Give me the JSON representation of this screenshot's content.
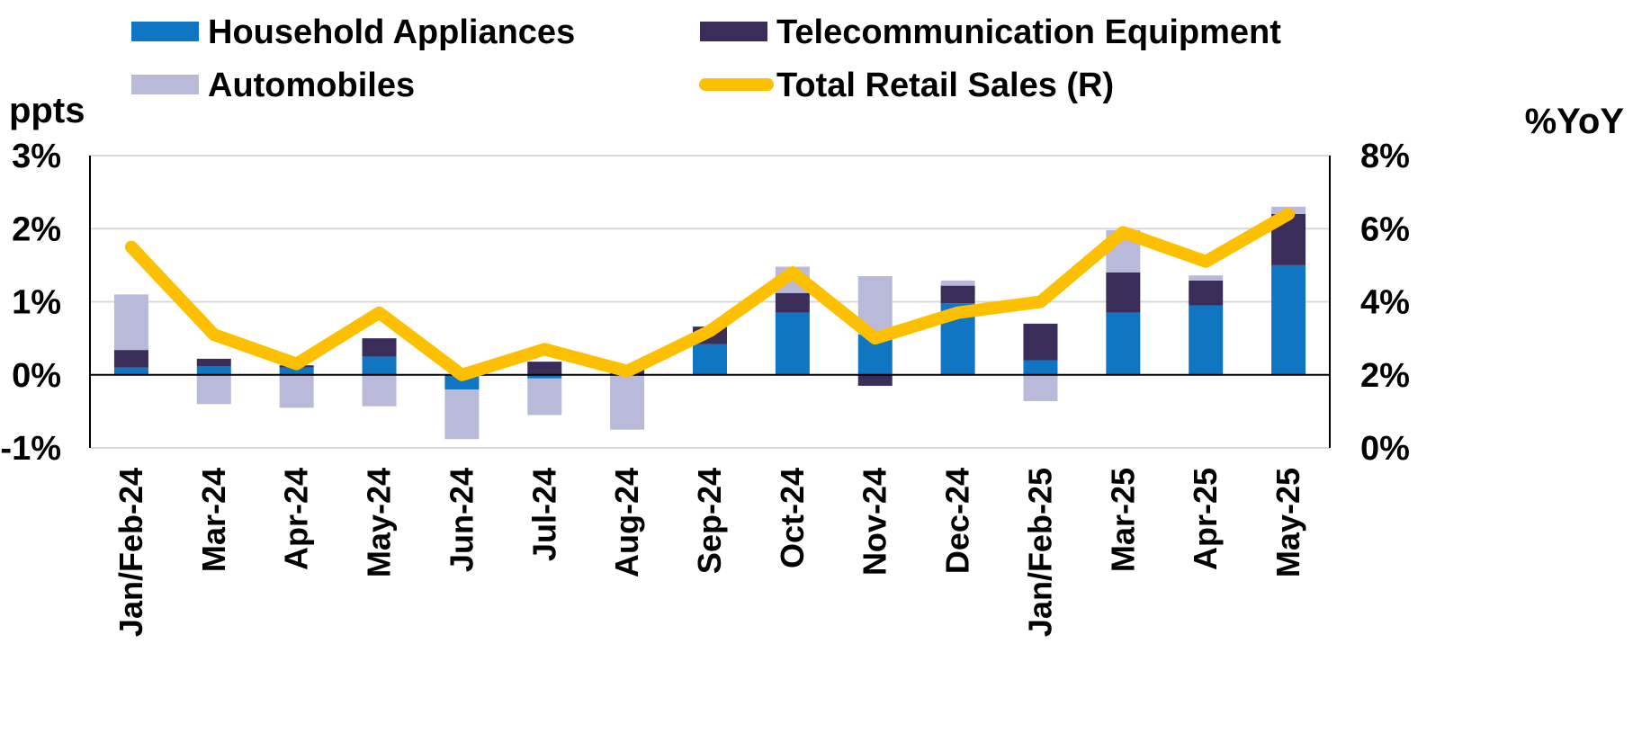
{
  "chart_data": {
    "type": "bar",
    "stacked": true,
    "categories": [
      "Jan/Feb-24",
      "Mar-24",
      "Apr-24",
      "May-24",
      "Jun-24",
      "Jul-24",
      "Aug-24",
      "Sep-24",
      "Oct-24",
      "Nov-24",
      "Dec-24",
      "Jan/Feb-25",
      "Mar-25",
      "Apr-25",
      "May-25"
    ],
    "series": [
      {
        "name": "Household Appliances",
        "axis": "left",
        "kind": "bar",
        "color": "#1075c2",
        "values": [
          0.1,
          0.12,
          0.1,
          0.25,
          -0.2,
          -0.05,
          0.0,
          0.42,
          0.85,
          0.55,
          0.98,
          0.2,
          0.85,
          0.95,
          1.5
        ]
      },
      {
        "name": "Telecommunication Equipment",
        "axis": "left",
        "kind": "bar",
        "color": "#3b2d59",
        "values": [
          0.24,
          0.1,
          0.03,
          0.25,
          0.0,
          0.18,
          0.08,
          0.24,
          0.27,
          -0.15,
          0.24,
          0.5,
          0.55,
          0.34,
          0.7
        ]
      },
      {
        "name": "Automobiles",
        "axis": "left",
        "kind": "bar",
        "color": "#b9b9da",
        "values": [
          0.76,
          -0.4,
          -0.45,
          -0.43,
          -0.68,
          -0.5,
          -0.75,
          0.0,
          0.36,
          0.8,
          0.07,
          -0.36,
          0.58,
          0.07,
          0.1
        ]
      },
      {
        "name": "Total Retail Sales (R)",
        "axis": "right",
        "kind": "line",
        "color": "#fcc000",
        "values": [
          5.5,
          3.1,
          2.3,
          3.7,
          2.0,
          2.7,
          2.1,
          3.2,
          4.8,
          3.0,
          3.7,
          4.0,
          5.9,
          5.1,
          6.4
        ]
      }
    ],
    "left_axis": {
      "title": "ppts",
      "min": -1,
      "max": 3,
      "ticks": [
        -1,
        0,
        1,
        2,
        3
      ],
      "tick_labels": [
        "-1%",
        "0%",
        "1%",
        "2%",
        "3%"
      ]
    },
    "right_axis": {
      "title": "%YoY",
      "min": 0,
      "max": 8,
      "ticks": [
        0,
        2,
        4,
        6,
        8
      ],
      "tick_labels": [
        "0%",
        "2%",
        "4%",
        "6%",
        "8%"
      ]
    },
    "legend": [
      {
        "label": "Household Appliances",
        "symbol": "bar",
        "color": "#1075c2"
      },
      {
        "label": "Telecommunication Equipment",
        "symbol": "bar",
        "color": "#3b2d59"
      },
      {
        "label": "Automobiles",
        "symbol": "bar",
        "color": "#b9b9da"
      },
      {
        "label": "Total Retail Sales (R)",
        "symbol": "line",
        "color": "#fcc000"
      }
    ],
    "legend_position": "top",
    "grid": true
  }
}
